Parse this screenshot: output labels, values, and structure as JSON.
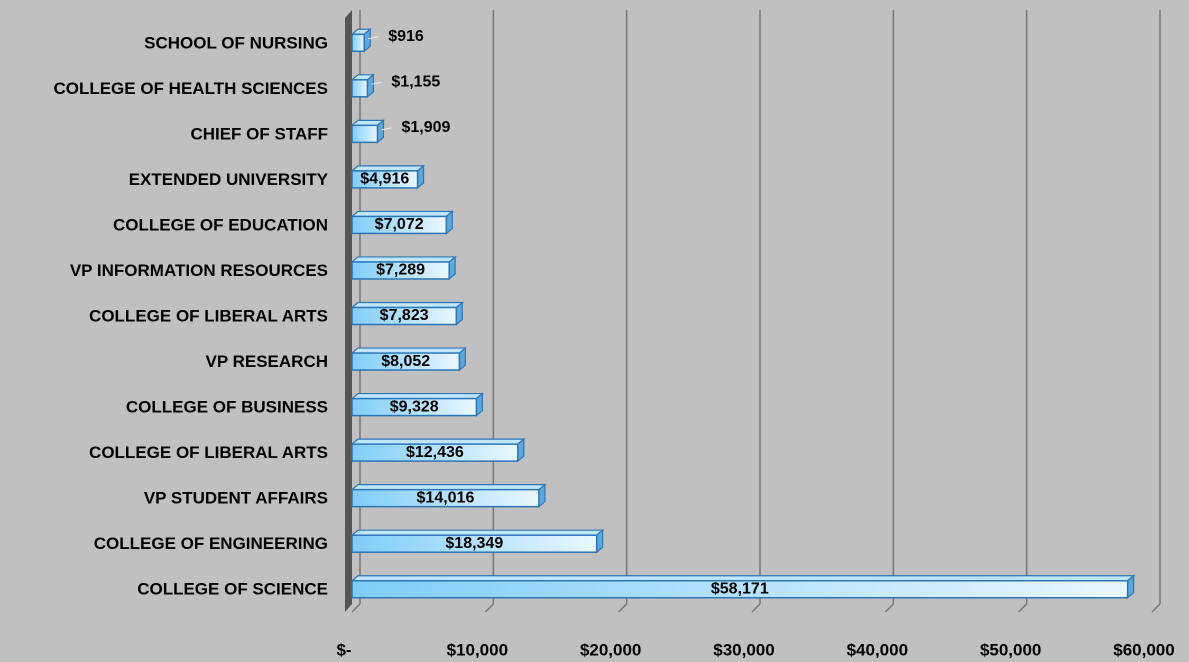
{
  "chart_data": {
    "type": "bar",
    "orientation": "horizontal",
    "categories": [
      "SCHOOL OF NURSING",
      "COLLEGE OF HEALTH SCIENCES",
      "CHIEF OF STAFF",
      "EXTENDED UNIVERSITY",
      "COLLEGE OF EDUCATION",
      "VP INFORMATION RESOURCES",
      "COLLEGE OF LIBERAL ARTS",
      "VP RESEARCH",
      "COLLEGE OF BUSINESS",
      "COLLEGE OF LIBERAL ARTS",
      "VP STUDENT AFFAIRS",
      "COLLEGE OF ENGINEERING",
      "COLLEGE OF SCIENCE"
    ],
    "values": [
      916,
      1155,
      1909,
      4916,
      7072,
      7289,
      7823,
      8052,
      9328,
      12436,
      14016,
      18349,
      58171
    ],
    "value_labels": [
      "$916",
      "$1,155",
      "$1,909",
      "$4,916",
      "$7,072",
      "$7,289",
      "$7,823",
      "$8,052",
      "$9,328",
      "$12,436",
      "$14,016",
      "$18,349",
      "$58,171"
    ],
    "color": "#9bd8fb",
    "xlim": [
      0,
      60000
    ],
    "xticks": [
      {
        "value": 0,
        "label": "$-"
      },
      {
        "value": 10000,
        "label": "$10,000"
      },
      {
        "value": 20000,
        "label": "$20,000"
      },
      {
        "value": 30000,
        "label": "$30,000"
      },
      {
        "value": 40000,
        "label": "$40,000"
      },
      {
        "value": 50000,
        "label": "$50,000"
      },
      {
        "value": 60000,
        "label": "$60,000"
      }
    ],
    "grid": true
  }
}
